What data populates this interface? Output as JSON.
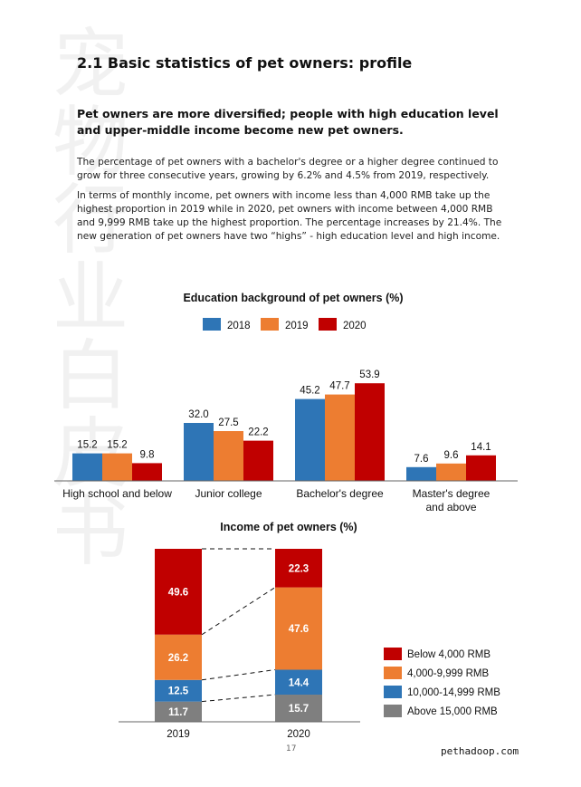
{
  "watermark": [
    "宠",
    "物",
    "行",
    "业",
    "白",
    "皮",
    "书"
  ],
  "section_title": "2.1 Basic statistics of pet owners: profile",
  "lead": "Pet owners are more diversified; people with high education level and upper-middle income become new pet owners.",
  "paragraph_1": "The percentage of pet owners with a bachelor's degree or a higher degree continued to grow for three consecutive years, growing by 6.2% and 4.5% from 2019, respectively.",
  "paragraph_2": "In terms of monthly income, pet owners with income less than 4,000 RMB take up the highest proportion in 2019 while in 2020, pet owners with income between 4,000 RMB and 9,999 RMB take up the highest proportion. The percentage increases by 21.4%. The new generation of pet owners have two “highs” - high education level and high income.",
  "page_number": "17",
  "site": "pethadoop.com",
  "chart_data": [
    {
      "type": "bar",
      "title": "Education background of pet owners (%)",
      "categories": [
        "High school and below",
        "Junior college",
        "Bachelor's degree",
        "Master's degree and above"
      ],
      "category_lines": [
        [
          "High school and below"
        ],
        [
          "Junior college"
        ],
        [
          "Bachelor's degree"
        ],
        [
          "Master's degree",
          "and above"
        ]
      ],
      "series": [
        {
          "name": "2018",
          "values": [
            15.2,
            32.0,
            45.2,
            7.6
          ],
          "color": "#2e75b6"
        },
        {
          "name": "2019",
          "values": [
            15.2,
            27.5,
            47.7,
            9.6
          ],
          "color": "#ed7d31"
        },
        {
          "name": "2020",
          "values": [
            9.8,
            22.2,
            53.9,
            14.1
          ],
          "color": "#c00000"
        }
      ],
      "ylim": [
        0,
        60
      ],
      "legend_position": "top",
      "grid": false
    },
    {
      "type": "bar",
      "stacked": true,
      "title": "Income of pet owners (%)",
      "categories": [
        "2019",
        "2020"
      ],
      "series": [
        {
          "name": "Above 15,000 RMB",
          "values": [
            11.7,
            15.7
          ],
          "color": "#7f7f7f"
        },
        {
          "name": "10,000-14,999  RMB",
          "values": [
            12.5,
            14.4
          ],
          "color": "#2e75b6"
        },
        {
          "name": "4,000-9,999 RMB",
          "values": [
            26.2,
            47.6
          ],
          "color": "#ed7d31"
        },
        {
          "name": "Below 4,000 RMB",
          "values": [
            49.6,
            22.3
          ],
          "color": "#c00000"
        }
      ],
      "legend_order": [
        "Below 4,000 RMB",
        "4,000-9,999 RMB",
        "10,000-14,999  RMB",
        "Above 15,000 RMB"
      ],
      "legend_position": "right",
      "grid": false
    }
  ]
}
